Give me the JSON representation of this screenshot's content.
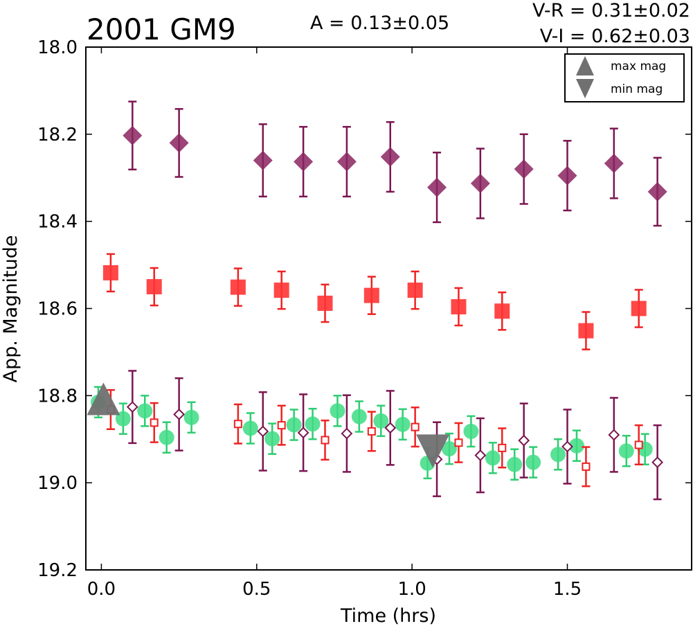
{
  "title": "2001 GM9",
  "amplitude_text": "A  = 0.13±0.05",
  "color_vr_text": "V-R = 0.31±0.02",
  "color_vi_text": "V-I  = 0.62±0.03",
  "colors": {
    "I": "#7b1550",
    "R": "#ee2222",
    "V": "#2ecc71",
    "marker_fill_I": "#8b2460",
    "marker_fill_R": "#ff3333",
    "marker_fill_V": "#3ddc84",
    "extremum": "#707070"
  },
  "chart_data": {
    "type": "scatter",
    "title": "2001 GM9",
    "xlabel": "Time (hrs)",
    "ylabel": "App. Magnitude",
    "xlim": [
      -0.05,
      1.9
    ],
    "ylim": [
      19.2,
      18.0
    ],
    "y_inverted": true,
    "xticks": [
      "0.0",
      "0.5",
      "1.0",
      "1.5"
    ],
    "yticks": [
      "18.0",
      "18.2",
      "18.4",
      "18.6",
      "18.8",
      "19.0",
      "19.2"
    ],
    "legend": {
      "placement": "top-right",
      "entries": [
        {
          "name": "max mag",
          "marker": "triangle-up"
        },
        {
          "name": "min mag",
          "marker": "triangle-down"
        }
      ]
    },
    "series": [
      {
        "band": "I",
        "marker": "diamond",
        "points": [
          {
            "x": 0.1,
            "y": 18.203,
            "err": 0.078
          },
          {
            "x": 0.25,
            "y": 18.22,
            "err": 0.078
          },
          {
            "x": 0.52,
            "y": 18.26,
            "err": 0.083
          },
          {
            "x": 0.65,
            "y": 18.263,
            "err": 0.08
          },
          {
            "x": 0.79,
            "y": 18.263,
            "err": 0.08
          },
          {
            "x": 0.93,
            "y": 18.252,
            "err": 0.08
          },
          {
            "x": 1.08,
            "y": 18.322,
            "err": 0.08
          },
          {
            "x": 1.22,
            "y": 18.313,
            "err": 0.08
          },
          {
            "x": 1.36,
            "y": 18.28,
            "err": 0.08
          },
          {
            "x": 1.5,
            "y": 18.295,
            "err": 0.08
          },
          {
            "x": 1.65,
            "y": 18.267,
            "err": 0.08
          },
          {
            "x": 1.79,
            "y": 18.332,
            "err": 0.078
          }
        ]
      },
      {
        "band": "R",
        "marker": "square",
        "points": [
          {
            "x": 0.03,
            "y": 18.518,
            "err": 0.043
          },
          {
            "x": 0.17,
            "y": 18.55,
            "err": 0.043
          },
          {
            "x": 0.44,
            "y": 18.551,
            "err": 0.043
          },
          {
            "x": 0.58,
            "y": 18.558,
            "err": 0.043
          },
          {
            "x": 0.72,
            "y": 18.588,
            "err": 0.043
          },
          {
            "x": 0.87,
            "y": 18.57,
            "err": 0.043
          },
          {
            "x": 1.01,
            "y": 18.558,
            "err": 0.043
          },
          {
            "x": 1.15,
            "y": 18.596,
            "err": 0.043
          },
          {
            "x": 1.29,
            "y": 18.606,
            "err": 0.043
          },
          {
            "x": 1.56,
            "y": 18.651,
            "err": 0.043
          },
          {
            "x": 1.73,
            "y": 18.6,
            "err": 0.043
          }
        ]
      },
      {
        "band": "V",
        "marker": "circle",
        "points": [
          {
            "x": -0.01,
            "y": 18.815,
            "err": 0.035
          },
          {
            "x": 0.07,
            "y": 18.853,
            "err": 0.035
          },
          {
            "x": 0.14,
            "y": 18.835,
            "err": 0.035
          },
          {
            "x": 0.21,
            "y": 18.896,
            "err": 0.035
          },
          {
            "x": 0.29,
            "y": 18.85,
            "err": 0.035
          },
          {
            "x": 0.48,
            "y": 18.875,
            "err": 0.035
          },
          {
            "x": 0.55,
            "y": 18.899,
            "err": 0.035
          },
          {
            "x": 0.62,
            "y": 18.867,
            "err": 0.035
          },
          {
            "x": 0.68,
            "y": 18.865,
            "err": 0.035
          },
          {
            "x": 0.76,
            "y": 18.835,
            "err": 0.035
          },
          {
            "x": 0.83,
            "y": 18.848,
            "err": 0.035
          },
          {
            "x": 0.9,
            "y": 18.858,
            "err": 0.035
          },
          {
            "x": 0.97,
            "y": 18.866,
            "err": 0.035
          },
          {
            "x": 1.05,
            "y": 18.955,
            "err": 0.035
          },
          {
            "x": 1.12,
            "y": 18.922,
            "err": 0.035
          },
          {
            "x": 1.19,
            "y": 18.882,
            "err": 0.035
          },
          {
            "x": 1.26,
            "y": 18.943,
            "err": 0.035
          },
          {
            "x": 1.33,
            "y": 18.958,
            "err": 0.035
          },
          {
            "x": 1.39,
            "y": 18.953,
            "err": 0.035
          },
          {
            "x": 1.47,
            "y": 18.935,
            "err": 0.035
          },
          {
            "x": 1.53,
            "y": 18.915,
            "err": 0.035
          },
          {
            "x": 1.69,
            "y": 18.927,
            "err": 0.035
          },
          {
            "x": 1.75,
            "y": 18.923,
            "err": 0.035
          }
        ]
      },
      {
        "band": "R-shifted",
        "marker": "square-open",
        "points": [
          {
            "x": 0.03,
            "y": 18.832,
            "err": 0.045
          },
          {
            "x": 0.17,
            "y": 18.862,
            "err": 0.045
          },
          {
            "x": 0.44,
            "y": 18.865,
            "err": 0.045
          },
          {
            "x": 0.58,
            "y": 18.868,
            "err": 0.045
          },
          {
            "x": 0.72,
            "y": 18.902,
            "err": 0.045
          },
          {
            "x": 0.87,
            "y": 18.882,
            "err": 0.045
          },
          {
            "x": 1.01,
            "y": 18.872,
            "err": 0.045
          },
          {
            "x": 1.15,
            "y": 18.908,
            "err": 0.045
          },
          {
            "x": 1.29,
            "y": 18.92,
            "err": 0.045
          },
          {
            "x": 1.56,
            "y": 18.963,
            "err": 0.045
          },
          {
            "x": 1.73,
            "y": 18.913,
            "err": 0.045
          }
        ]
      },
      {
        "band": "I-shifted",
        "marker": "diamond-open",
        "points": [
          {
            "x": 0.1,
            "y": 18.826,
            "err": 0.083
          },
          {
            "x": 0.25,
            "y": 18.843,
            "err": 0.083
          },
          {
            "x": 0.52,
            "y": 18.882,
            "err": 0.09
          },
          {
            "x": 0.65,
            "y": 18.885,
            "err": 0.088
          },
          {
            "x": 0.79,
            "y": 18.887,
            "err": 0.088
          },
          {
            "x": 0.93,
            "y": 18.874,
            "err": 0.085
          },
          {
            "x": 1.08,
            "y": 18.946,
            "err": 0.085
          },
          {
            "x": 1.22,
            "y": 18.937,
            "err": 0.085
          },
          {
            "x": 1.36,
            "y": 18.903,
            "err": 0.085
          },
          {
            "x": 1.5,
            "y": 18.917,
            "err": 0.085
          },
          {
            "x": 1.65,
            "y": 18.89,
            "err": 0.085
          },
          {
            "x": 1.79,
            "y": 18.953,
            "err": 0.085
          }
        ]
      }
    ],
    "extrema": [
      {
        "type": "max",
        "x": 0.0,
        "y": 18.832
      },
      {
        "type": "min",
        "x": 1.06,
        "y": 18.94
      }
    ]
  }
}
